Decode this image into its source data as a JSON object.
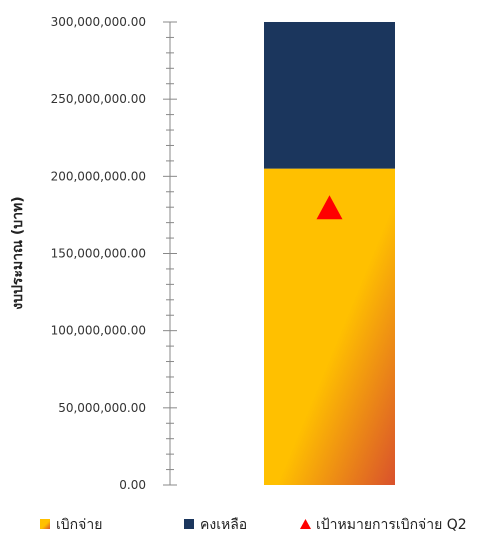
{
  "chart_data": {
    "type": "bar",
    "stacked": true,
    "categories": [
      ""
    ],
    "ylabel": "งบประมาณ (บาท)",
    "ylim": [
      0,
      300000000
    ],
    "yticks": [
      "0.00",
      "50,000,000.00",
      "100,000,000.00",
      "150,000,000.00",
      "200,000,000.00",
      "250,000,000.00",
      "300,000,000.00"
    ],
    "ytick_values": [
      0,
      50000000,
      100000000,
      150000000,
      200000000,
      250000000,
      300000000
    ],
    "series": [
      {
        "name": "เบิกจ่าย",
        "values": [
          205000000
        ],
        "color": "#FFC000",
        "color_end": "#D9512C"
      },
      {
        "name": "คงเหลือ",
        "values": [
          95000000
        ],
        "color": "#1B365D"
      }
    ],
    "target": {
      "name": "เป้าหมายการเบิกจ่าย Q2",
      "values": [
        180000000
      ],
      "color": "#FF0000",
      "marker": "triangle"
    },
    "legend": {
      "position": "bottom"
    },
    "grid": false
  }
}
